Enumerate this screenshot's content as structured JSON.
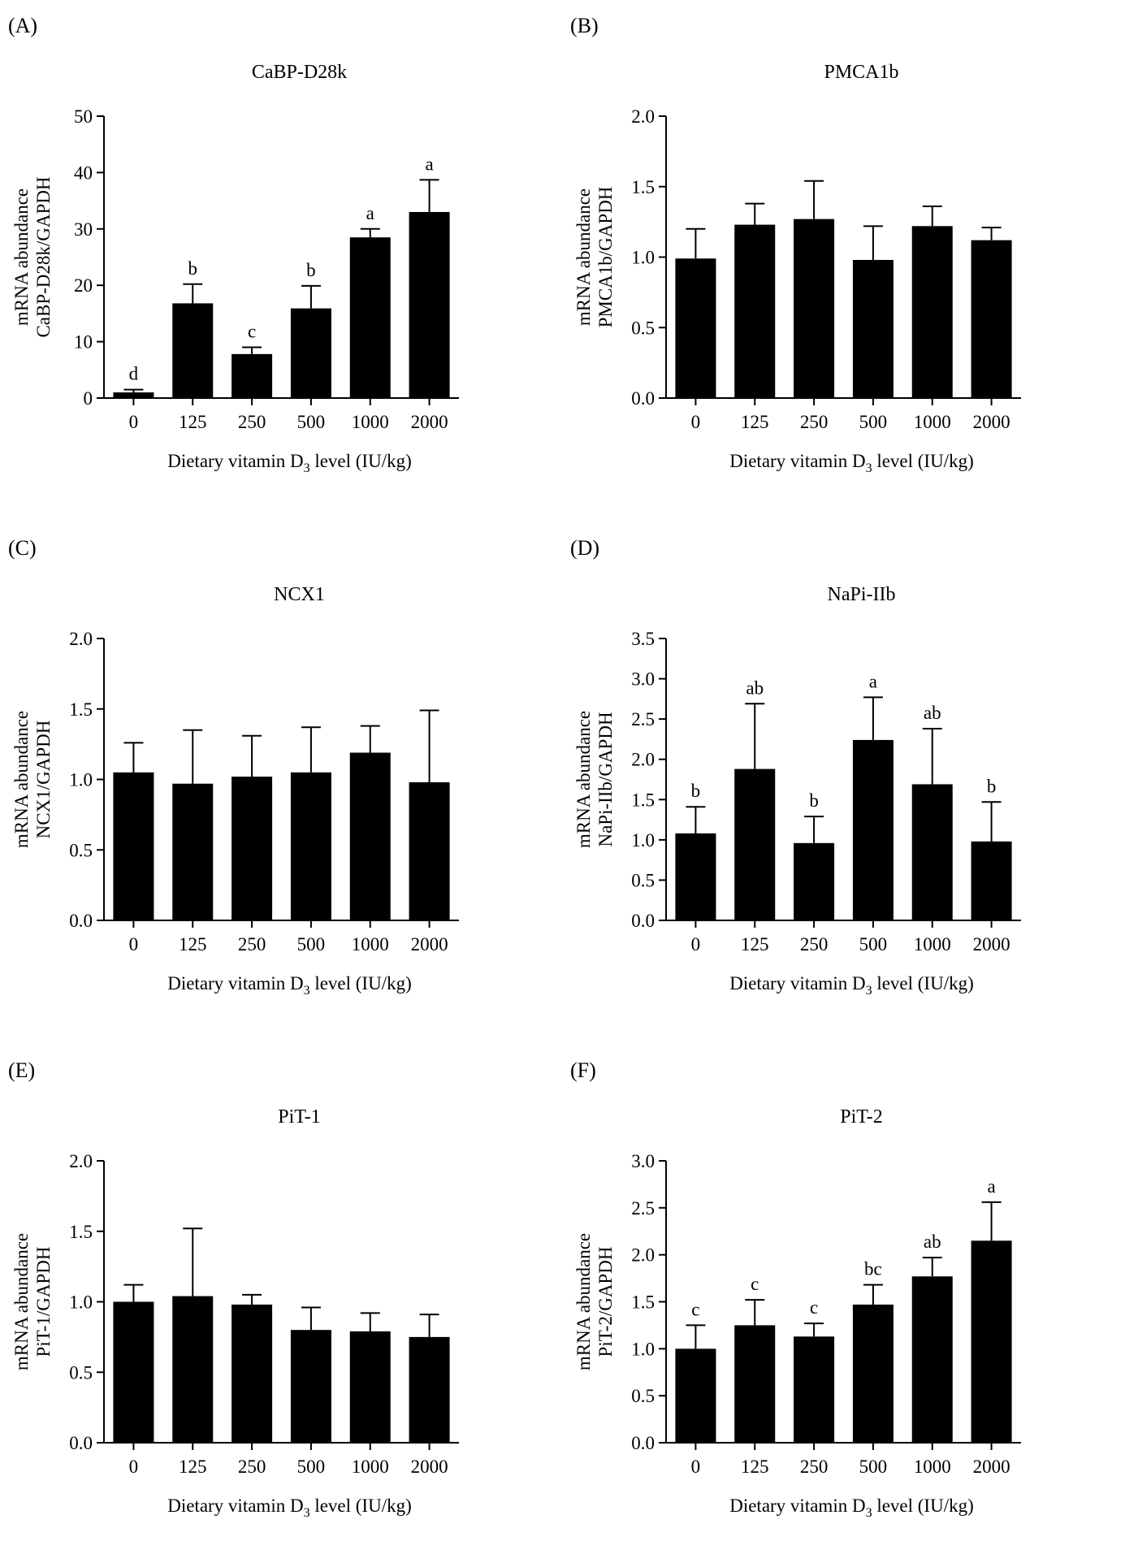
{
  "chart_data": [
    {
      "type": "bar",
      "panel_label": "(A)",
      "title": "CaBP-D28k",
      "ylabel_line1": "mRNA abundance",
      "ylabel_line2": "CaBP-D28k/GAPDH",
      "xlabel_pre": "Dietary vitamin D",
      "xlabel_sub": "3",
      "xlabel_post": " level (IU/kg)",
      "categories": [
        "0",
        "125",
        "250",
        "500",
        "1000",
        "2000"
      ],
      "values": [
        1.0,
        16.8,
        7.8,
        15.9,
        28.5,
        33.0
      ],
      "errors": [
        0.5,
        3.4,
        1.2,
        4.0,
        1.5,
        5.7
      ],
      "letters": [
        "d",
        "b",
        "c",
        "b",
        "a",
        "a"
      ],
      "ylim": [
        0,
        50
      ],
      "yticks": [
        "0",
        "10",
        "20",
        "30",
        "40",
        "50"
      ]
    },
    {
      "type": "bar",
      "panel_label": "(B)",
      "title": "PMCA1b",
      "ylabel_line1": "mRNA abundance",
      "ylabel_line2": "PMCA1b/GAPDH",
      "xlabel_pre": "Dietary vitamin D",
      "xlabel_sub": "3",
      "xlabel_post": " level (IU/kg)",
      "categories": [
        "0",
        "125",
        "250",
        "500",
        "1000",
        "2000"
      ],
      "values": [
        0.99,
        1.23,
        1.27,
        0.98,
        1.22,
        1.12
      ],
      "errors": [
        0.21,
        0.15,
        0.27,
        0.24,
        0.14,
        0.09
      ],
      "letters": [],
      "ylim": [
        0,
        2.0
      ],
      "yticks": [
        "0.0",
        "0.5",
        "1.0",
        "1.5",
        "2.0"
      ]
    },
    {
      "type": "bar",
      "panel_label": "(C)",
      "title": "NCX1",
      "ylabel_line1": "mRNA abundance",
      "ylabel_line2": "NCX1/GAPDH",
      "xlabel_pre": "Dietary vitamin D",
      "xlabel_sub": "3",
      "xlabel_post": " level (IU/kg)",
      "categories": [
        "0",
        "125",
        "250",
        "500",
        "1000",
        "2000"
      ],
      "values": [
        1.05,
        0.97,
        1.02,
        1.05,
        1.19,
        0.98
      ],
      "errors": [
        0.21,
        0.38,
        0.29,
        0.32,
        0.19,
        0.51
      ],
      "letters": [],
      "ylim": [
        0,
        2.0
      ],
      "yticks": [
        "0.0",
        "0.5",
        "1.0",
        "1.5",
        "2.0"
      ]
    },
    {
      "type": "bar",
      "panel_label": "(D)",
      "title": "NaPi-IIb",
      "ylabel_line1": "mRNA abundance",
      "ylabel_line2": "NaPi-IIb/GAPDH",
      "xlabel_pre": "Dietary vitamin D",
      "xlabel_sub": "3",
      "xlabel_post": " level (IU/kg)",
      "categories": [
        "0",
        "125",
        "250",
        "500",
        "1000",
        "2000"
      ],
      "values": [
        1.08,
        1.88,
        0.96,
        2.24,
        1.69,
        0.98
      ],
      "errors": [
        0.33,
        0.81,
        0.33,
        0.53,
        0.69,
        0.49
      ],
      "letters": [
        "b",
        "ab",
        "b",
        "a",
        "ab",
        "b"
      ],
      "ylim": [
        0,
        3.5
      ],
      "yticks": [
        "0.0",
        "0.5",
        "1.0",
        "1.5",
        "2.0",
        "2.5",
        "3.0",
        "3.5"
      ]
    },
    {
      "type": "bar",
      "panel_label": "(E)",
      "title": "PiT-1",
      "ylabel_line1": "mRNA abundance",
      "ylabel_line2": "PiT-1/GAPDH",
      "xlabel_pre": "Dietary vitamin D",
      "xlabel_sub": "3",
      "xlabel_post": " level (IU/kg)",
      "categories": [
        "0",
        "125",
        "250",
        "500",
        "1000",
        "2000"
      ],
      "values": [
        1.0,
        1.04,
        0.98,
        0.8,
        0.79,
        0.75
      ],
      "errors": [
        0.12,
        0.48,
        0.07,
        0.16,
        0.13,
        0.16
      ],
      "letters": [],
      "ylim": [
        0,
        2.0
      ],
      "yticks": [
        "0.0",
        "0.5",
        "1.0",
        "1.5",
        "2.0"
      ]
    },
    {
      "type": "bar",
      "panel_label": "(F)",
      "title": "PiT-2",
      "ylabel_line1": "mRNA abundance",
      "ylabel_line2": "PiT-2/GAPDH",
      "xlabel_pre": "Dietary vitamin D",
      "xlabel_sub": "3",
      "xlabel_post": " level (IU/kg)",
      "categories": [
        "0",
        "125",
        "250",
        "500",
        "1000",
        "2000"
      ],
      "values": [
        1.0,
        1.25,
        1.13,
        1.47,
        1.77,
        2.15
      ],
      "errors": [
        0.25,
        0.27,
        0.14,
        0.21,
        0.2,
        0.41
      ],
      "letters": [
        "c",
        "c",
        "c",
        "bc",
        "ab",
        "a"
      ],
      "ylim": [
        0,
        3.0
      ],
      "yticks": [
        "0.0",
        "0.5",
        "1.0",
        "1.5",
        "2.0",
        "2.5",
        "3.0"
      ]
    }
  ]
}
